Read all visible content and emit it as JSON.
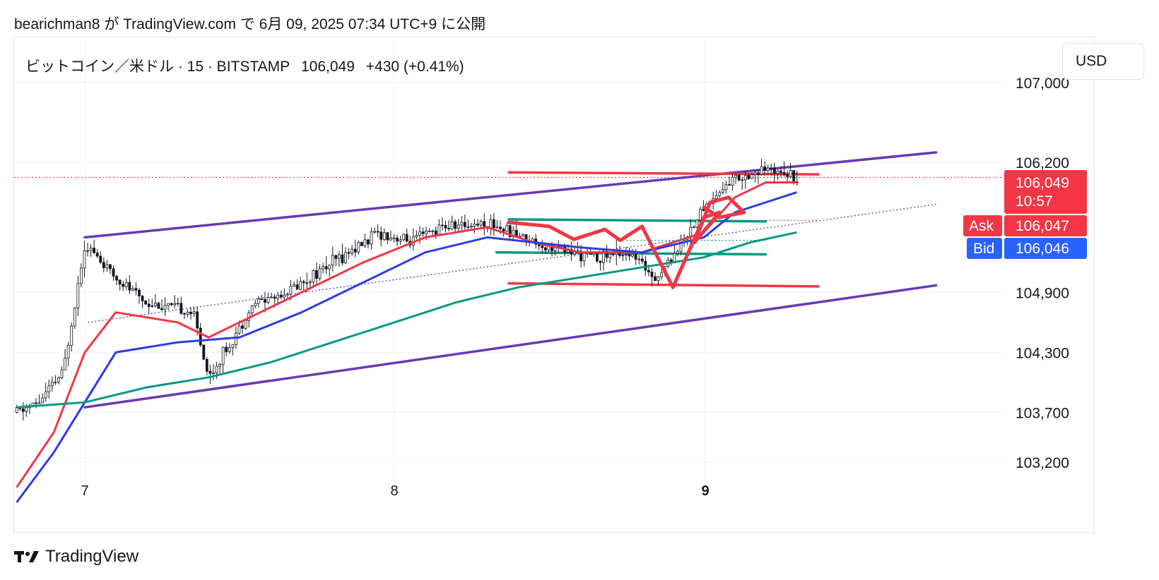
{
  "header": {
    "publish_text": "bearichman8 が TradingView.com で 6月 09, 2025 07:34 UTC+9 に公開"
  },
  "symbol": {
    "name": "ビットコイン／米ドル · 15 · BITSTAMP",
    "price": "106,049",
    "change": "+430 (+0.41%)"
  },
  "currency_button": "USD",
  "price_axis": {
    "ticks": [
      "107,000",
      "106,200",
      "104,900",
      "104,300",
      "103,700",
      "103,200"
    ],
    "last_price": "106,049",
    "countdown": "10:57",
    "ask_label": "Ask",
    "ask_price": "106,047",
    "bid_label": "Bid",
    "bid_price": "106,046"
  },
  "time_axis": {
    "labels": [
      "7",
      "8",
      "9"
    ]
  },
  "footer": {
    "brand": "TradingView"
  },
  "colors": {
    "red": "#f23645",
    "blue": "#2d3ae8",
    "green": "#089981",
    "purple": "#673ab7",
    "grid": "#f0f3fa",
    "candle": "#131722"
  },
  "chart_data": {
    "type": "candlestick",
    "symbol": "BTC/USD",
    "interval": "15",
    "exchange": "BITSTAMP",
    "ylim": [
      102750,
      107450
    ],
    "y_ticks": [
      107000,
      106200,
      104900,
      104300,
      103700,
      103200
    ],
    "x_ticks": [
      "7",
      "8",
      "9"
    ],
    "last_price": 106049,
    "ask": 106047,
    "bid": 106046,
    "price_path": [
      [
        6.78,
        103700
      ],
      [
        6.85,
        103800
      ],
      [
        6.93,
        104100
      ],
      [
        7.0,
        105400
      ],
      [
        7.08,
        105100
      ],
      [
        7.2,
        104800
      ],
      [
        7.35,
        104700
      ],
      [
        7.4,
        104050
      ],
      [
        7.55,
        104800
      ],
      [
        7.65,
        104900
      ],
      [
        7.8,
        105200
      ],
      [
        7.95,
        105500
      ],
      [
        8.05,
        105400
      ],
      [
        8.15,
        105550
      ],
      [
        8.3,
        105600
      ],
      [
        8.5,
        105350
      ],
      [
        8.65,
        105250
      ],
      [
        8.75,
        105300
      ],
      [
        8.85,
        105050
      ],
      [
        8.95,
        105500
      ],
      [
        9.0,
        105750
      ],
      [
        9.1,
        106050
      ],
      [
        9.25,
        106150
      ],
      [
        9.3,
        106050
      ]
    ],
    "series": [
      {
        "name": "",
        "color": "#f23645",
        "points": [
          [
            6.78,
            102950
          ],
          [
            6.9,
            103500
          ],
          [
            7.0,
            104300
          ],
          [
            7.1,
            104700
          ],
          [
            7.3,
            104600
          ],
          [
            7.4,
            104450
          ],
          [
            7.6,
            104750
          ],
          [
            7.9,
            105200
          ],
          [
            8.1,
            105450
          ],
          [
            8.3,
            105550
          ],
          [
            8.45,
            105400
          ],
          [
            8.6,
            105300
          ],
          [
            8.8,
            105300
          ],
          [
            9.0,
            105500
          ],
          [
            9.1,
            105850
          ],
          [
            9.2,
            106000
          ],
          [
            9.3,
            106000
          ]
        ]
      },
      {
        "name": "",
        "color": "#2d3ae8",
        "points": [
          [
            6.78,
            102800
          ],
          [
            6.9,
            103300
          ],
          [
            7.0,
            103800
          ],
          [
            7.1,
            104300
          ],
          [
            7.3,
            104400
          ],
          [
            7.5,
            104450
          ],
          [
            7.7,
            104700
          ],
          [
            7.9,
            105000
          ],
          [
            8.1,
            105300
          ],
          [
            8.3,
            105450
          ],
          [
            8.45,
            105400
          ],
          [
            8.6,
            105350
          ],
          [
            8.8,
            105300
          ],
          [
            9.0,
            105450
          ],
          [
            9.1,
            105700
          ],
          [
            9.3,
            105900
          ]
        ]
      },
      {
        "name": "",
        "color": "#089981",
        "points": [
          [
            6.78,
            103750
          ],
          [
            7.0,
            103800
          ],
          [
            7.2,
            103950
          ],
          [
            7.4,
            104050
          ],
          [
            7.6,
            104200
          ],
          [
            7.8,
            104400
          ],
          [
            8.0,
            104600
          ],
          [
            8.2,
            104800
          ],
          [
            8.4,
            104950
          ],
          [
            8.6,
            105050
          ],
          [
            8.8,
            105150
          ],
          [
            9.0,
            105250
          ],
          [
            9.15,
            105400
          ],
          [
            9.3,
            105500
          ]
        ]
      }
    ],
    "drawings": [
      {
        "kind": "trendline",
        "color": "#673ab7",
        "from": [
          7.0,
          105450
        ],
        "to": [
          9.75,
          106300
        ]
      },
      {
        "kind": "trendline",
        "color": "#673ab7",
        "from": [
          7.0,
          103750
        ],
        "to": [
          9.75,
          104970
        ]
      },
      {
        "kind": "horizontal",
        "color": "#f23645",
        "from": [
          8.37,
          106100
        ],
        "to": [
          9.37,
          106080
        ]
      },
      {
        "kind": "horizontal",
        "color": "#f23645",
        "from": [
          8.37,
          104990
        ],
        "to": [
          9.37,
          104960
        ]
      },
      {
        "kind": "horizontal",
        "color": "#089981",
        "from": [
          8.37,
          105630
        ],
        "to": [
          9.2,
          105610
        ]
      },
      {
        "kind": "horizontal",
        "color": "#089981",
        "from": [
          8.33,
          105300
        ],
        "to": [
          9.2,
          105280
        ]
      }
    ]
  }
}
